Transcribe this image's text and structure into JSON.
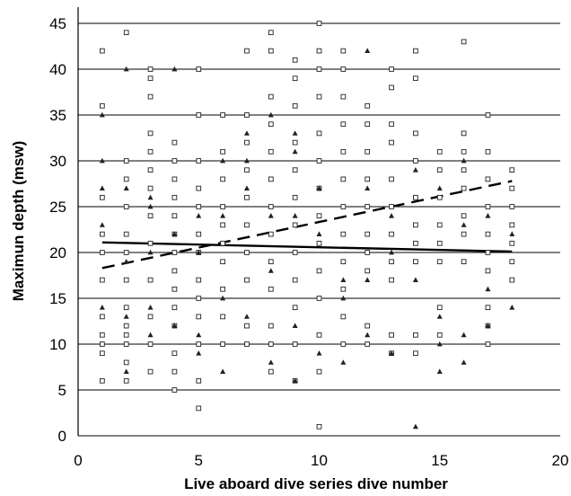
{
  "chart_data": {
    "type": "scatter",
    "title": "",
    "xlabel": "Live aboard dive series dive number",
    "ylabel": "Maximun depth (msw)",
    "xlim": [
      0,
      20
    ],
    "ylim": [
      0,
      45
    ],
    "x_ticks": [
      0,
      5,
      10,
      15,
      20
    ],
    "y_ticks": [
      0,
      5,
      10,
      15,
      20,
      25,
      30,
      35,
      40,
      45
    ],
    "grid": "horizontal",
    "legend": "none",
    "series": [
      {
        "marker": "open-square",
        "points": [
          [
            1,
            6
          ],
          [
            1,
            9
          ],
          [
            1,
            10
          ],
          [
            1,
            11
          ],
          [
            1,
            13
          ],
          [
            1,
            17
          ],
          [
            1,
            20
          ],
          [
            1,
            22
          ],
          [
            1,
            26
          ],
          [
            1,
            36
          ],
          [
            1,
            42
          ],
          [
            2,
            6
          ],
          [
            2,
            8
          ],
          [
            2,
            10
          ],
          [
            2,
            11
          ],
          [
            2,
            12
          ],
          [
            2,
            14
          ],
          [
            2,
            17
          ],
          [
            2,
            20
          ],
          [
            2,
            22
          ],
          [
            2,
            25
          ],
          [
            2,
            28
          ],
          [
            2,
            30
          ],
          [
            2,
            44
          ],
          [
            3,
            7
          ],
          [
            3,
            10
          ],
          [
            3,
            13
          ],
          [
            3,
            17
          ],
          [
            3,
            21
          ],
          [
            3,
            24
          ],
          [
            3,
            27
          ],
          [
            3,
            29
          ],
          [
            3,
            31
          ],
          [
            3,
            33
          ],
          [
            3,
            37
          ],
          [
            3,
            39
          ],
          [
            3,
            40
          ],
          [
            4,
            5
          ],
          [
            4,
            7
          ],
          [
            4,
            9
          ],
          [
            4,
            12
          ],
          [
            4,
            14
          ],
          [
            4,
            16
          ],
          [
            4,
            18
          ],
          [
            4,
            20
          ],
          [
            4,
            22
          ],
          [
            4,
            24
          ],
          [
            4,
            26
          ],
          [
            4,
            28
          ],
          [
            4,
            30
          ],
          [
            4,
            32
          ],
          [
            5,
            3
          ],
          [
            5,
            6
          ],
          [
            5,
            10
          ],
          [
            5,
            13
          ],
          [
            5,
            15
          ],
          [
            5,
            17
          ],
          [
            5,
            20
          ],
          [
            5,
            22
          ],
          [
            5,
            25
          ],
          [
            5,
            27
          ],
          [
            5,
            30
          ],
          [
            5,
            35
          ],
          [
            5,
            40
          ],
          [
            6,
            10
          ],
          [
            6,
            13
          ],
          [
            6,
            16
          ],
          [
            6,
            19
          ],
          [
            6,
            21
          ],
          [
            6,
            23
          ],
          [
            6,
            25
          ],
          [
            6,
            28
          ],
          [
            6,
            31
          ],
          [
            6,
            35
          ],
          [
            7,
            10
          ],
          [
            7,
            12
          ],
          [
            7,
            17
          ],
          [
            7,
            20
          ],
          [
            7,
            23
          ],
          [
            7,
            26
          ],
          [
            7,
            29
          ],
          [
            7,
            32
          ],
          [
            7,
            35
          ],
          [
            7,
            42
          ],
          [
            8,
            7
          ],
          [
            8,
            10
          ],
          [
            8,
            12
          ],
          [
            8,
            16
          ],
          [
            8,
            19
          ],
          [
            8,
            22
          ],
          [
            8,
            25
          ],
          [
            8,
            28
          ],
          [
            8,
            31
          ],
          [
            8,
            34
          ],
          [
            8,
            37
          ],
          [
            8,
            42
          ],
          [
            8,
            44
          ],
          [
            9,
            6
          ],
          [
            9,
            10
          ],
          [
            9,
            14
          ],
          [
            9,
            17
          ],
          [
            9,
            20
          ],
          [
            9,
            23
          ],
          [
            9,
            26
          ],
          [
            9,
            29
          ],
          [
            9,
            32
          ],
          [
            9,
            36
          ],
          [
            9,
            39
          ],
          [
            9,
            41
          ],
          [
            10,
            1
          ],
          [
            10,
            7
          ],
          [
            10,
            11
          ],
          [
            10,
            15
          ],
          [
            10,
            18
          ],
          [
            10,
            21
          ],
          [
            10,
            24
          ],
          [
            10,
            27
          ],
          [
            10,
            30
          ],
          [
            10,
            33
          ],
          [
            10,
            37
          ],
          [
            10,
            40
          ],
          [
            10,
            42
          ],
          [
            10,
            45
          ],
          [
            11,
            10
          ],
          [
            11,
            13
          ],
          [
            11,
            16
          ],
          [
            11,
            19
          ],
          [
            11,
            22
          ],
          [
            11,
            25
          ],
          [
            11,
            28
          ],
          [
            11,
            31
          ],
          [
            11,
            34
          ],
          [
            11,
            37
          ],
          [
            11,
            40
          ],
          [
            11,
            42
          ],
          [
            12,
            10
          ],
          [
            12,
            12
          ],
          [
            12,
            18
          ],
          [
            12,
            20
          ],
          [
            12,
            22
          ],
          [
            12,
            25
          ],
          [
            12,
            28
          ],
          [
            12,
            31
          ],
          [
            12,
            34
          ],
          [
            12,
            36
          ],
          [
            13,
            9
          ],
          [
            13,
            11
          ],
          [
            13,
            17
          ],
          [
            13,
            19
          ],
          [
            13,
            22
          ],
          [
            13,
            25
          ],
          [
            13,
            28
          ],
          [
            13,
            32
          ],
          [
            13,
            34
          ],
          [
            13,
            38
          ],
          [
            13,
            40
          ],
          [
            14,
            9
          ],
          [
            14,
            11
          ],
          [
            14,
            19
          ],
          [
            14,
            21
          ],
          [
            14,
            23
          ],
          [
            14,
            26
          ],
          [
            14,
            30
          ],
          [
            14,
            33
          ],
          [
            14,
            39
          ],
          [
            14,
            42
          ],
          [
            15,
            11
          ],
          [
            15,
            14
          ],
          [
            15,
            19
          ],
          [
            15,
            21
          ],
          [
            15,
            23
          ],
          [
            15,
            26
          ],
          [
            15,
            29
          ],
          [
            15,
            31
          ],
          [
            16,
            19
          ],
          [
            16,
            22
          ],
          [
            16,
            24
          ],
          [
            16,
            27
          ],
          [
            16,
            29
          ],
          [
            16,
            31
          ],
          [
            16,
            33
          ],
          [
            16,
            43
          ],
          [
            17,
            10
          ],
          [
            17,
            12
          ],
          [
            17,
            14
          ],
          [
            17,
            18
          ],
          [
            17,
            20
          ],
          [
            17,
            22
          ],
          [
            17,
            25
          ],
          [
            17,
            28
          ],
          [
            17,
            31
          ],
          [
            17,
            35
          ],
          [
            18,
            17
          ],
          [
            18,
            19
          ],
          [
            18,
            21
          ],
          [
            18,
            23
          ],
          [
            18,
            25
          ],
          [
            18,
            27
          ],
          [
            18,
            29
          ]
        ]
      },
      {
        "marker": "filled-triangle",
        "points": [
          [
            1,
            14
          ],
          [
            1,
            23
          ],
          [
            1,
            27
          ],
          [
            1,
            30
          ],
          [
            1,
            35
          ],
          [
            2,
            7
          ],
          [
            2,
            13
          ],
          [
            2,
            19
          ],
          [
            2,
            27
          ],
          [
            2,
            40
          ],
          [
            3,
            11
          ],
          [
            3,
            14
          ],
          [
            3,
            20
          ],
          [
            3,
            25
          ],
          [
            3,
            26
          ],
          [
            4,
            12
          ],
          [
            4,
            22
          ],
          [
            4,
            40
          ],
          [
            5,
            9
          ],
          [
            5,
            11
          ],
          [
            5,
            20
          ],
          [
            5,
            24
          ],
          [
            6,
            7
          ],
          [
            6,
            15
          ],
          [
            6,
            24
          ],
          [
            6,
            30
          ],
          [
            7,
            13
          ],
          [
            7,
            27
          ],
          [
            7,
            30
          ],
          [
            7,
            33
          ],
          [
            8,
            8
          ],
          [
            8,
            18
          ],
          [
            8,
            24
          ],
          [
            8,
            35
          ],
          [
            9,
            6
          ],
          [
            9,
            12
          ],
          [
            9,
            24
          ],
          [
            9,
            31
          ],
          [
            9,
            33
          ],
          [
            10,
            9
          ],
          [
            10,
            22
          ],
          [
            10,
            27
          ],
          [
            11,
            8
          ],
          [
            11,
            15
          ],
          [
            11,
            17
          ],
          [
            12,
            11
          ],
          [
            12,
            17
          ],
          [
            12,
            27
          ],
          [
            12,
            42
          ],
          [
            13,
            9
          ],
          [
            13,
            20
          ],
          [
            13,
            24
          ],
          [
            14,
            1
          ],
          [
            14,
            17
          ],
          [
            14,
            29
          ],
          [
            15,
            7
          ],
          [
            15,
            10
          ],
          [
            15,
            13
          ],
          [
            15,
            27
          ],
          [
            16,
            8
          ],
          [
            16,
            11
          ],
          [
            16,
            23
          ],
          [
            16,
            30
          ],
          [
            17,
            12
          ],
          [
            17,
            16
          ],
          [
            17,
            24
          ],
          [
            18,
            14
          ],
          [
            18,
            22
          ]
        ]
      }
    ],
    "trendlines": [
      {
        "style": "solid",
        "points": [
          [
            1,
            21.1
          ],
          [
            18,
            20.1
          ]
        ]
      },
      {
        "style": "dashed",
        "points": [
          [
            1,
            18.3
          ],
          [
            18,
            27.8
          ]
        ]
      }
    ]
  }
}
